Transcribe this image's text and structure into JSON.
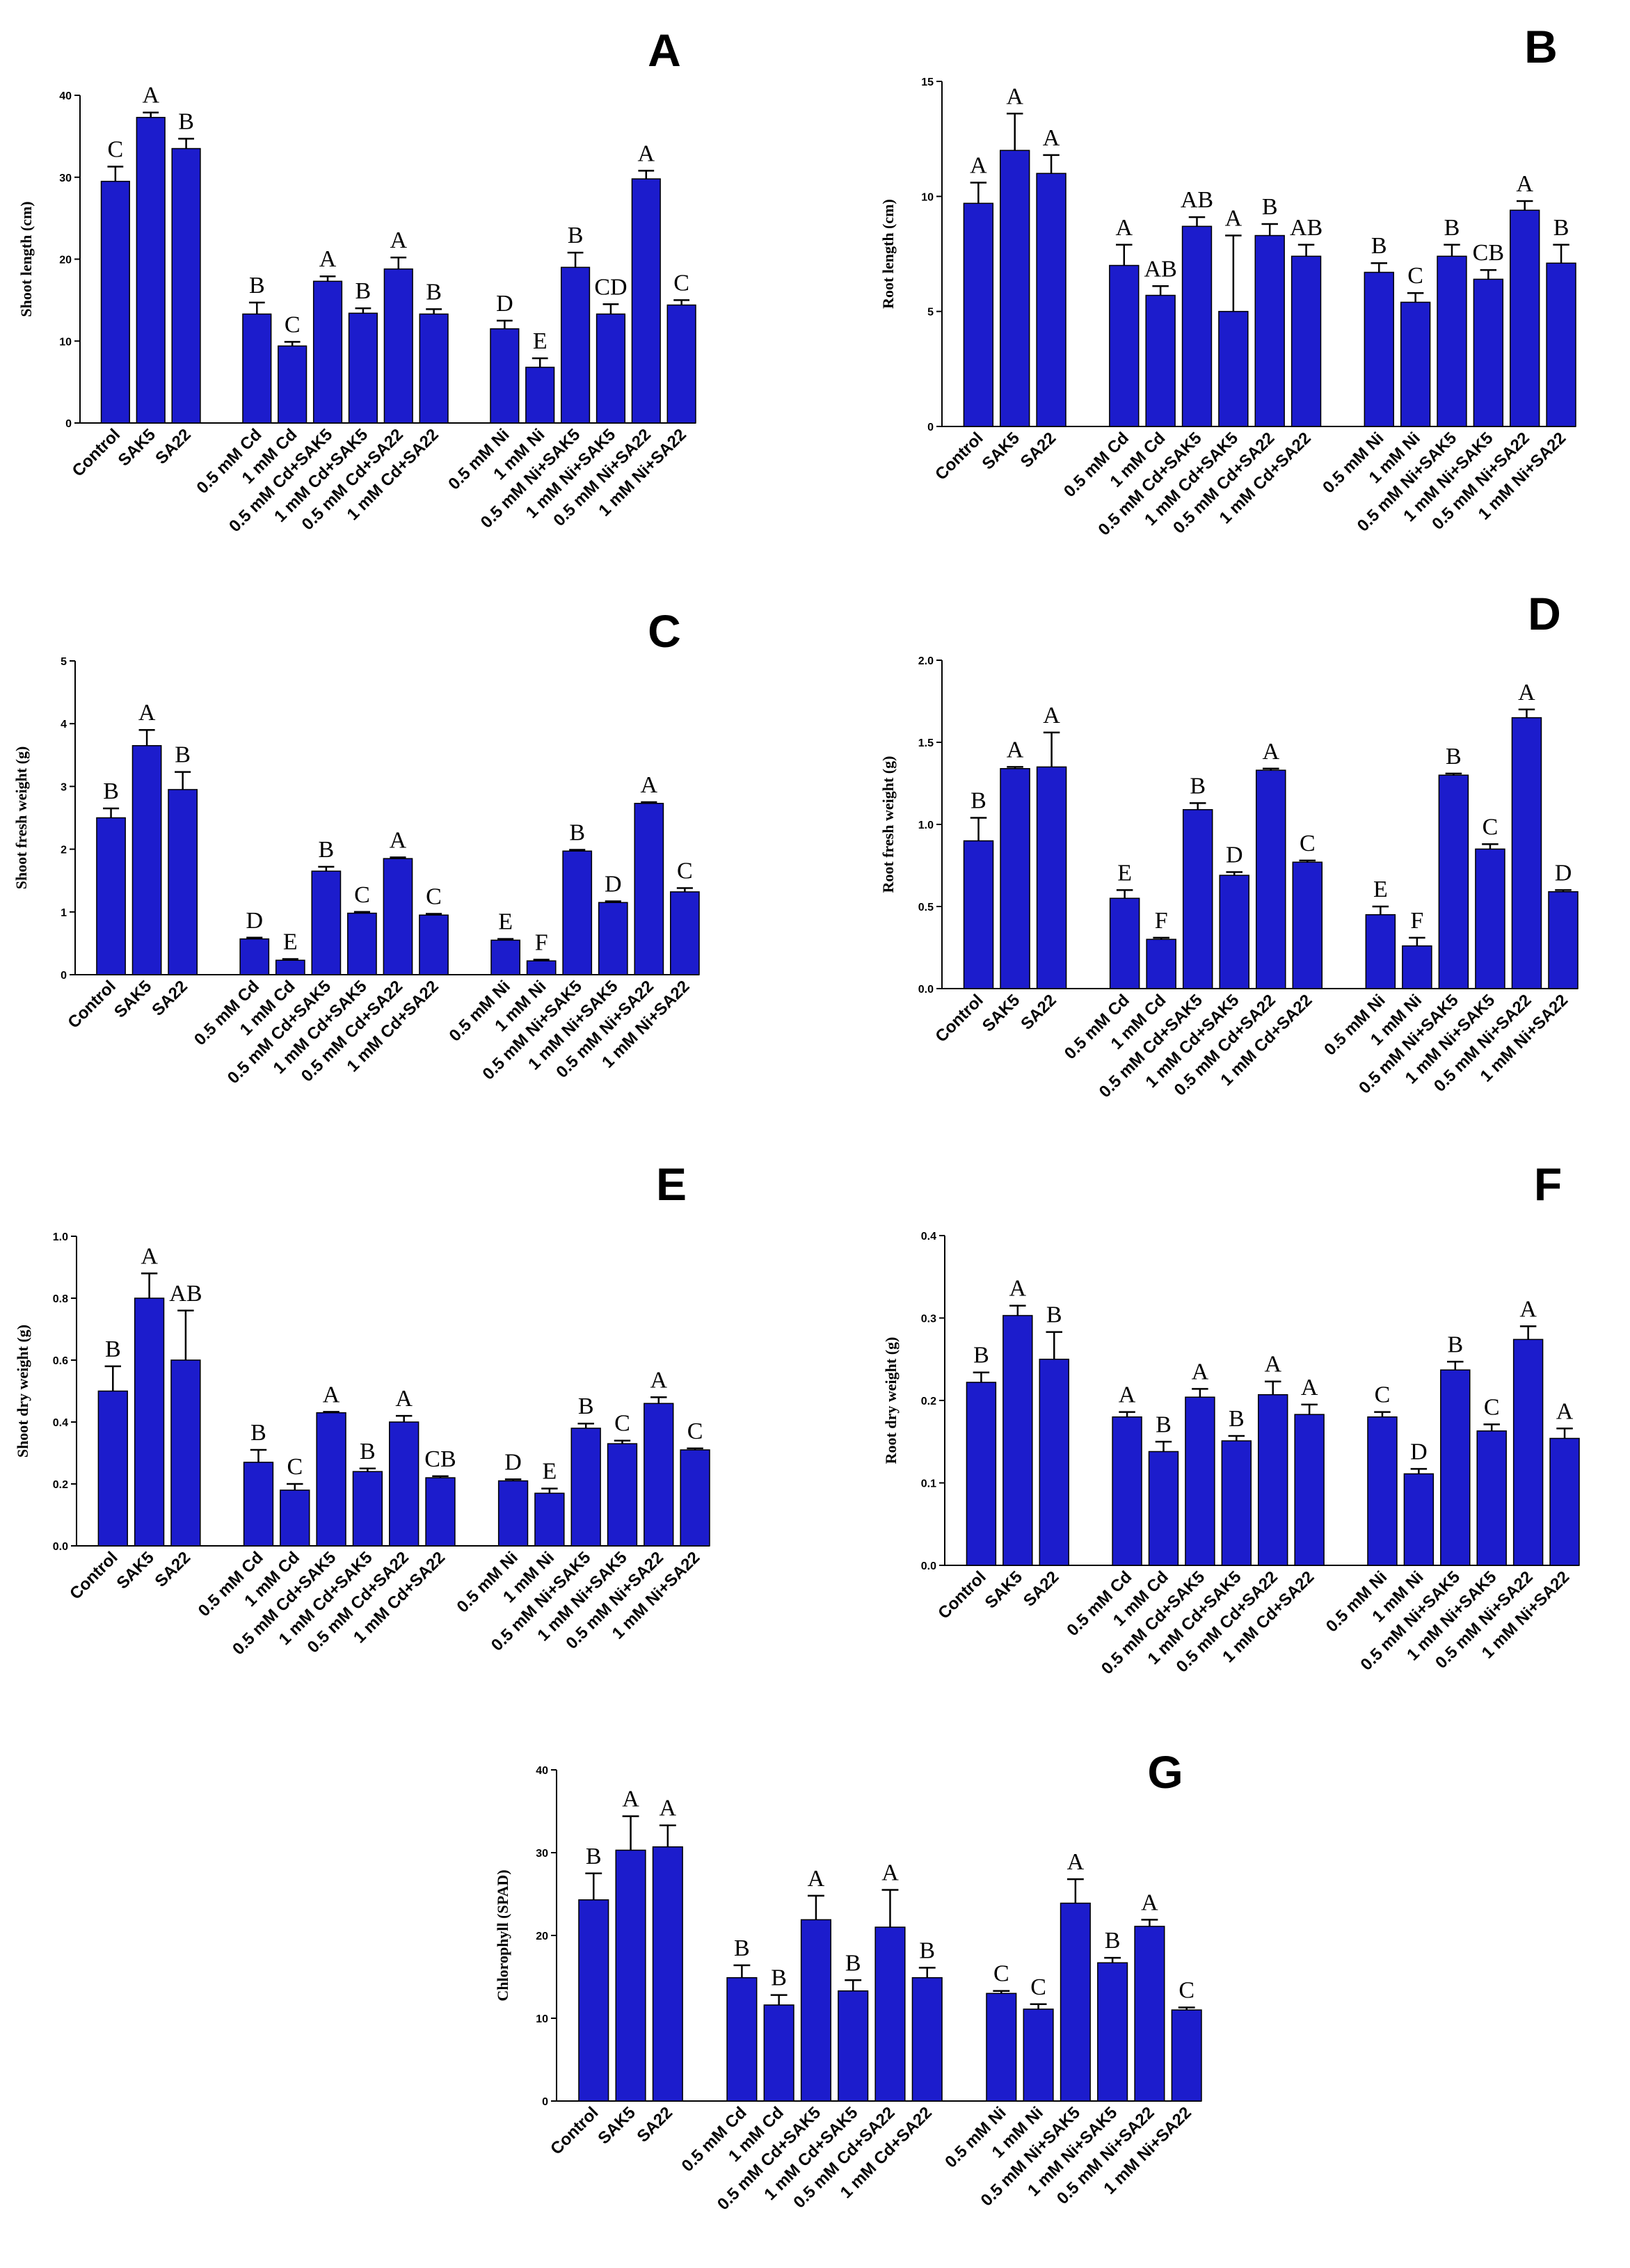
{
  "chart_data": [
    {
      "panel": "A",
      "type": "bar",
      "ylabel": "Shoot length (cm)",
      "ylim": [
        0,
        40
      ],
      "yticks": [
        0,
        10,
        20,
        30,
        40
      ],
      "categories": [
        "Control",
        "SAK5",
        "SA22",
        "0.5 mM Cd",
        "1 mM Cd",
        "0.5 mM Cd+SAK5",
        "1 mM Cd+SAK5",
        "0.5 mM Cd+SA22",
        "1 mM Cd+SA22",
        "0.5 mM Ni",
        "1 mM Ni",
        "0.5 mM Ni+SAK5",
        "1 mM Ni+SAK5",
        "0.5 mM Ni+SA22",
        "1 mM Ni+SA22"
      ],
      "values": [
        29.5,
        37.3,
        33.5,
        13.3,
        9.4,
        17.3,
        13.4,
        18.8,
        13.3,
        11.5,
        6.8,
        19.0,
        13.3,
        29.8,
        14.4
      ],
      "errors": [
        1.8,
        0.6,
        1.2,
        1.4,
        0.5,
        0.6,
        0.6,
        1.4,
        0.6,
        1.0,
        1.1,
        1.8,
        1.2,
        1.0,
        0.6
      ],
      "letters": [
        "C",
        "A",
        "B",
        "B",
        "C",
        "A",
        "B",
        "A",
        "B",
        "D",
        "E",
        "B",
        "CD",
        "A",
        "C"
      ]
    },
    {
      "panel": "B",
      "type": "bar",
      "ylabel": "Root length (cm)",
      "ylim": [
        0,
        15
      ],
      "yticks": [
        0,
        5,
        10,
        15
      ],
      "categories": [
        "Control",
        "SAK5",
        "SA22",
        "0.5 mM Cd",
        "1 mM Cd",
        "0.5 mM Cd+SAK5",
        "1 mM Cd+SAK5",
        "0.5 mM Cd+SA22",
        "1 mM Cd+SA22",
        "0.5 mM Ni",
        "1 mM Ni",
        "0.5 mM Ni+SAK5",
        "1 mM Ni+SAK5",
        "0.5 mM Ni+SA22",
        "1 mM Ni+SA22"
      ],
      "values": [
        9.7,
        12.0,
        11.0,
        7.0,
        5.7,
        8.7,
        5.0,
        8.3,
        7.4,
        6.7,
        5.4,
        7.4,
        6.4,
        9.4,
        7.1
      ],
      "errors": [
        0.9,
        1.6,
        0.8,
        0.9,
        0.4,
        0.4,
        3.3,
        0.5,
        0.5,
        0.4,
        0.4,
        0.5,
        0.4,
        0.4,
        0.8
      ],
      "letters": [
        "A",
        "A",
        "A",
        "A",
        "AB",
        "AB",
        "A",
        "B",
        "AB",
        "B",
        "C",
        "B",
        "CB",
        "A",
        "B"
      ]
    },
    {
      "panel": "C",
      "type": "bar",
      "ylabel": "Shoot fresh weight (g)",
      "ylim": [
        0,
        5
      ],
      "yticks": [
        0,
        1,
        2,
        3,
        4,
        5
      ],
      "categories": [
        "Control",
        "SAK5",
        "SA22",
        "0.5 mM Cd",
        "1 mM Cd",
        "0.5 mM Cd+SAK5",
        "1 mM Cd+SAK5",
        "0.5 mM Cd+SA22",
        "1 mM Cd+SA22",
        "0.5 mM Ni",
        "1 mM Ni",
        "0.5 mM Ni+SAK5",
        "1 mM Ni+SAK5",
        "0.5 mM Ni+SA22",
        "1 mM Ni+SA22"
      ],
      "values": [
        2.5,
        3.65,
        2.95,
        0.57,
        0.23,
        1.65,
        0.98,
        1.85,
        0.95,
        0.55,
        0.22,
        1.97,
        1.15,
        2.73,
        1.32
      ],
      "errors": [
        0.15,
        0.25,
        0.28,
        0.02,
        0.02,
        0.07,
        0.02,
        0.02,
        0.02,
        0.02,
        0.02,
        0.02,
        0.02,
        0.02,
        0.06
      ],
      "letters": [
        "B",
        "A",
        "B",
        "D",
        "E",
        "B",
        "C",
        "A",
        "C",
        "E",
        "F",
        "B",
        "D",
        "A",
        "C"
      ]
    },
    {
      "panel": "D",
      "type": "bar",
      "ylabel": "Root fresh weight (g)",
      "ylim": [
        0,
        2.0
      ],
      "yticks": [
        0.0,
        0.5,
        1.0,
        1.5,
        2.0
      ],
      "categories": [
        "Control",
        "SAK5",
        "SA22",
        "0.5 mM Cd",
        "1 mM Cd",
        "0.5 mM Cd+SAK5",
        "1 mM Cd+SAK5",
        "0.5 mM Cd+SA22",
        "1 mM Cd+SA22",
        "0.5 mM Ni",
        "1 mM Ni",
        "0.5 mM Ni+SAK5",
        "1 mM Ni+SAK5",
        "0.5 mM Ni+SA22",
        "1 mM Ni+SA22"
      ],
      "values": [
        0.9,
        1.34,
        1.35,
        0.55,
        0.3,
        1.09,
        0.69,
        1.33,
        0.77,
        0.45,
        0.26,
        1.3,
        0.85,
        1.65,
        0.59
      ],
      "errors": [
        0.14,
        0.01,
        0.21,
        0.05,
        0.01,
        0.04,
        0.02,
        0.01,
        0.01,
        0.05,
        0.05,
        0.01,
        0.03,
        0.05,
        0.01
      ],
      "letters": [
        "B",
        "A",
        "A",
        "E",
        "F",
        "B",
        "D",
        "A",
        "C",
        "E",
        "F",
        "B",
        "C",
        "A",
        "D"
      ]
    },
    {
      "panel": "E",
      "type": "bar",
      "ylabel": "Shoot dry weight (g)",
      "ylim": [
        0,
        1.0
      ],
      "yticks": [
        0.0,
        0.2,
        0.4,
        0.6,
        0.8,
        1.0
      ],
      "categories": [
        "Control",
        "SAK5",
        "SA22",
        "0.5 mM Cd",
        "1 mM Cd",
        "0.5 mM Cd+SAK5",
        "1 mM Cd+SAK5",
        "0.5 mM Cd+SA22",
        "1 mM Cd+SA22",
        "0.5 mM Ni",
        "1 mM Ni",
        "0.5 mM Ni+SAK5",
        "1 mM Ni+SAK5",
        "0.5 mM Ni+SA22",
        "1 mM Ni+SA22"
      ],
      "values": [
        0.5,
        0.8,
        0.6,
        0.27,
        0.18,
        0.43,
        0.24,
        0.4,
        0.22,
        0.21,
        0.17,
        0.38,
        0.33,
        0.46,
        0.31
      ],
      "errors": [
        0.08,
        0.08,
        0.16,
        0.04,
        0.02,
        0.003,
        0.01,
        0.02,
        0.005,
        0.005,
        0.015,
        0.015,
        0.01,
        0.02,
        0.005
      ],
      "letters": [
        "B",
        "A",
        "AB",
        "B",
        "C",
        "A",
        "B",
        "A",
        "CB",
        "D",
        "E",
        "B",
        "C",
        "A",
        "C"
      ]
    },
    {
      "panel": "F",
      "type": "bar",
      "ylabel": "Root dry weight (g)",
      "ylim": [
        0,
        0.4
      ],
      "yticks": [
        0.0,
        0.1,
        0.2,
        0.3,
        0.4
      ],
      "categories": [
        "Control",
        "SAK5",
        "SA22",
        "0.5 mM Cd",
        "1 mM Cd",
        "0.5 mM Cd+SAK5",
        "1 mM Cd+SAK5",
        "0.5 mM Cd+SA22",
        "1 mM Cd+SA22",
        "0.5 mM Ni",
        "1 mM Ni",
        "0.5 mM Ni+SAK5",
        "1 mM Ni+SAK5",
        "0.5 mM Ni+SA22",
        "1 mM Ni+SA22"
      ],
      "values": [
        0.222,
        0.303,
        0.25,
        0.18,
        0.138,
        0.204,
        0.151,
        0.207,
        0.183,
        0.18,
        0.111,
        0.237,
        0.163,
        0.274,
        0.154
      ],
      "errors": [
        0.012,
        0.012,
        0.033,
        0.006,
        0.012,
        0.01,
        0.006,
        0.016,
        0.012,
        0.006,
        0.006,
        0.01,
        0.008,
        0.016,
        0.012
      ],
      "letters": [
        "B",
        "A",
        "B",
        "A",
        "B",
        "A",
        "B",
        "A",
        "A",
        "C",
        "D",
        "B",
        "C",
        "A",
        "A"
      ]
    },
    {
      "panel": "G",
      "type": "bar",
      "ylabel": "Chlorophyll (SPAD)",
      "ylim": [
        0,
        40
      ],
      "yticks": [
        0,
        10,
        20,
        30,
        40
      ],
      "categories": [
        "Control",
        "SAK5",
        "SA22",
        "0.5 mM Cd",
        "1 mM Cd",
        "0.5 mM Cd+SAK5",
        "1 mM Cd+SAK5",
        "0.5 mM Cd+SA22",
        "1 mM Cd+SA22",
        "0.5 mM Ni",
        "1 mM Ni",
        "0.5 mM Ni+SAK5",
        "1 mM Ni+SAK5",
        "0.5 mM Ni+SA22",
        "1 mM Ni+SA22"
      ],
      "values": [
        24.3,
        30.3,
        30.7,
        14.9,
        11.6,
        21.9,
        13.3,
        21.0,
        14.9,
        13.0,
        11.1,
        23.9,
        16.7,
        21.1,
        11.0
      ],
      "errors": [
        3.2,
        4.1,
        2.6,
        1.5,
        1.2,
        2.9,
        1.3,
        4.5,
        1.2,
        0.3,
        0.6,
        2.9,
        0.6,
        0.8,
        0.3
      ],
      "letters": [
        "B",
        "A",
        "A",
        "B",
        "B",
        "A",
        "B",
        "A",
        "B",
        "C",
        "C",
        "A",
        "B",
        "A",
        "C"
      ]
    }
  ],
  "colors": {
    "bar_fill": "#1c1ccc",
    "bar_stroke": "#000000",
    "axis": "#000000"
  }
}
